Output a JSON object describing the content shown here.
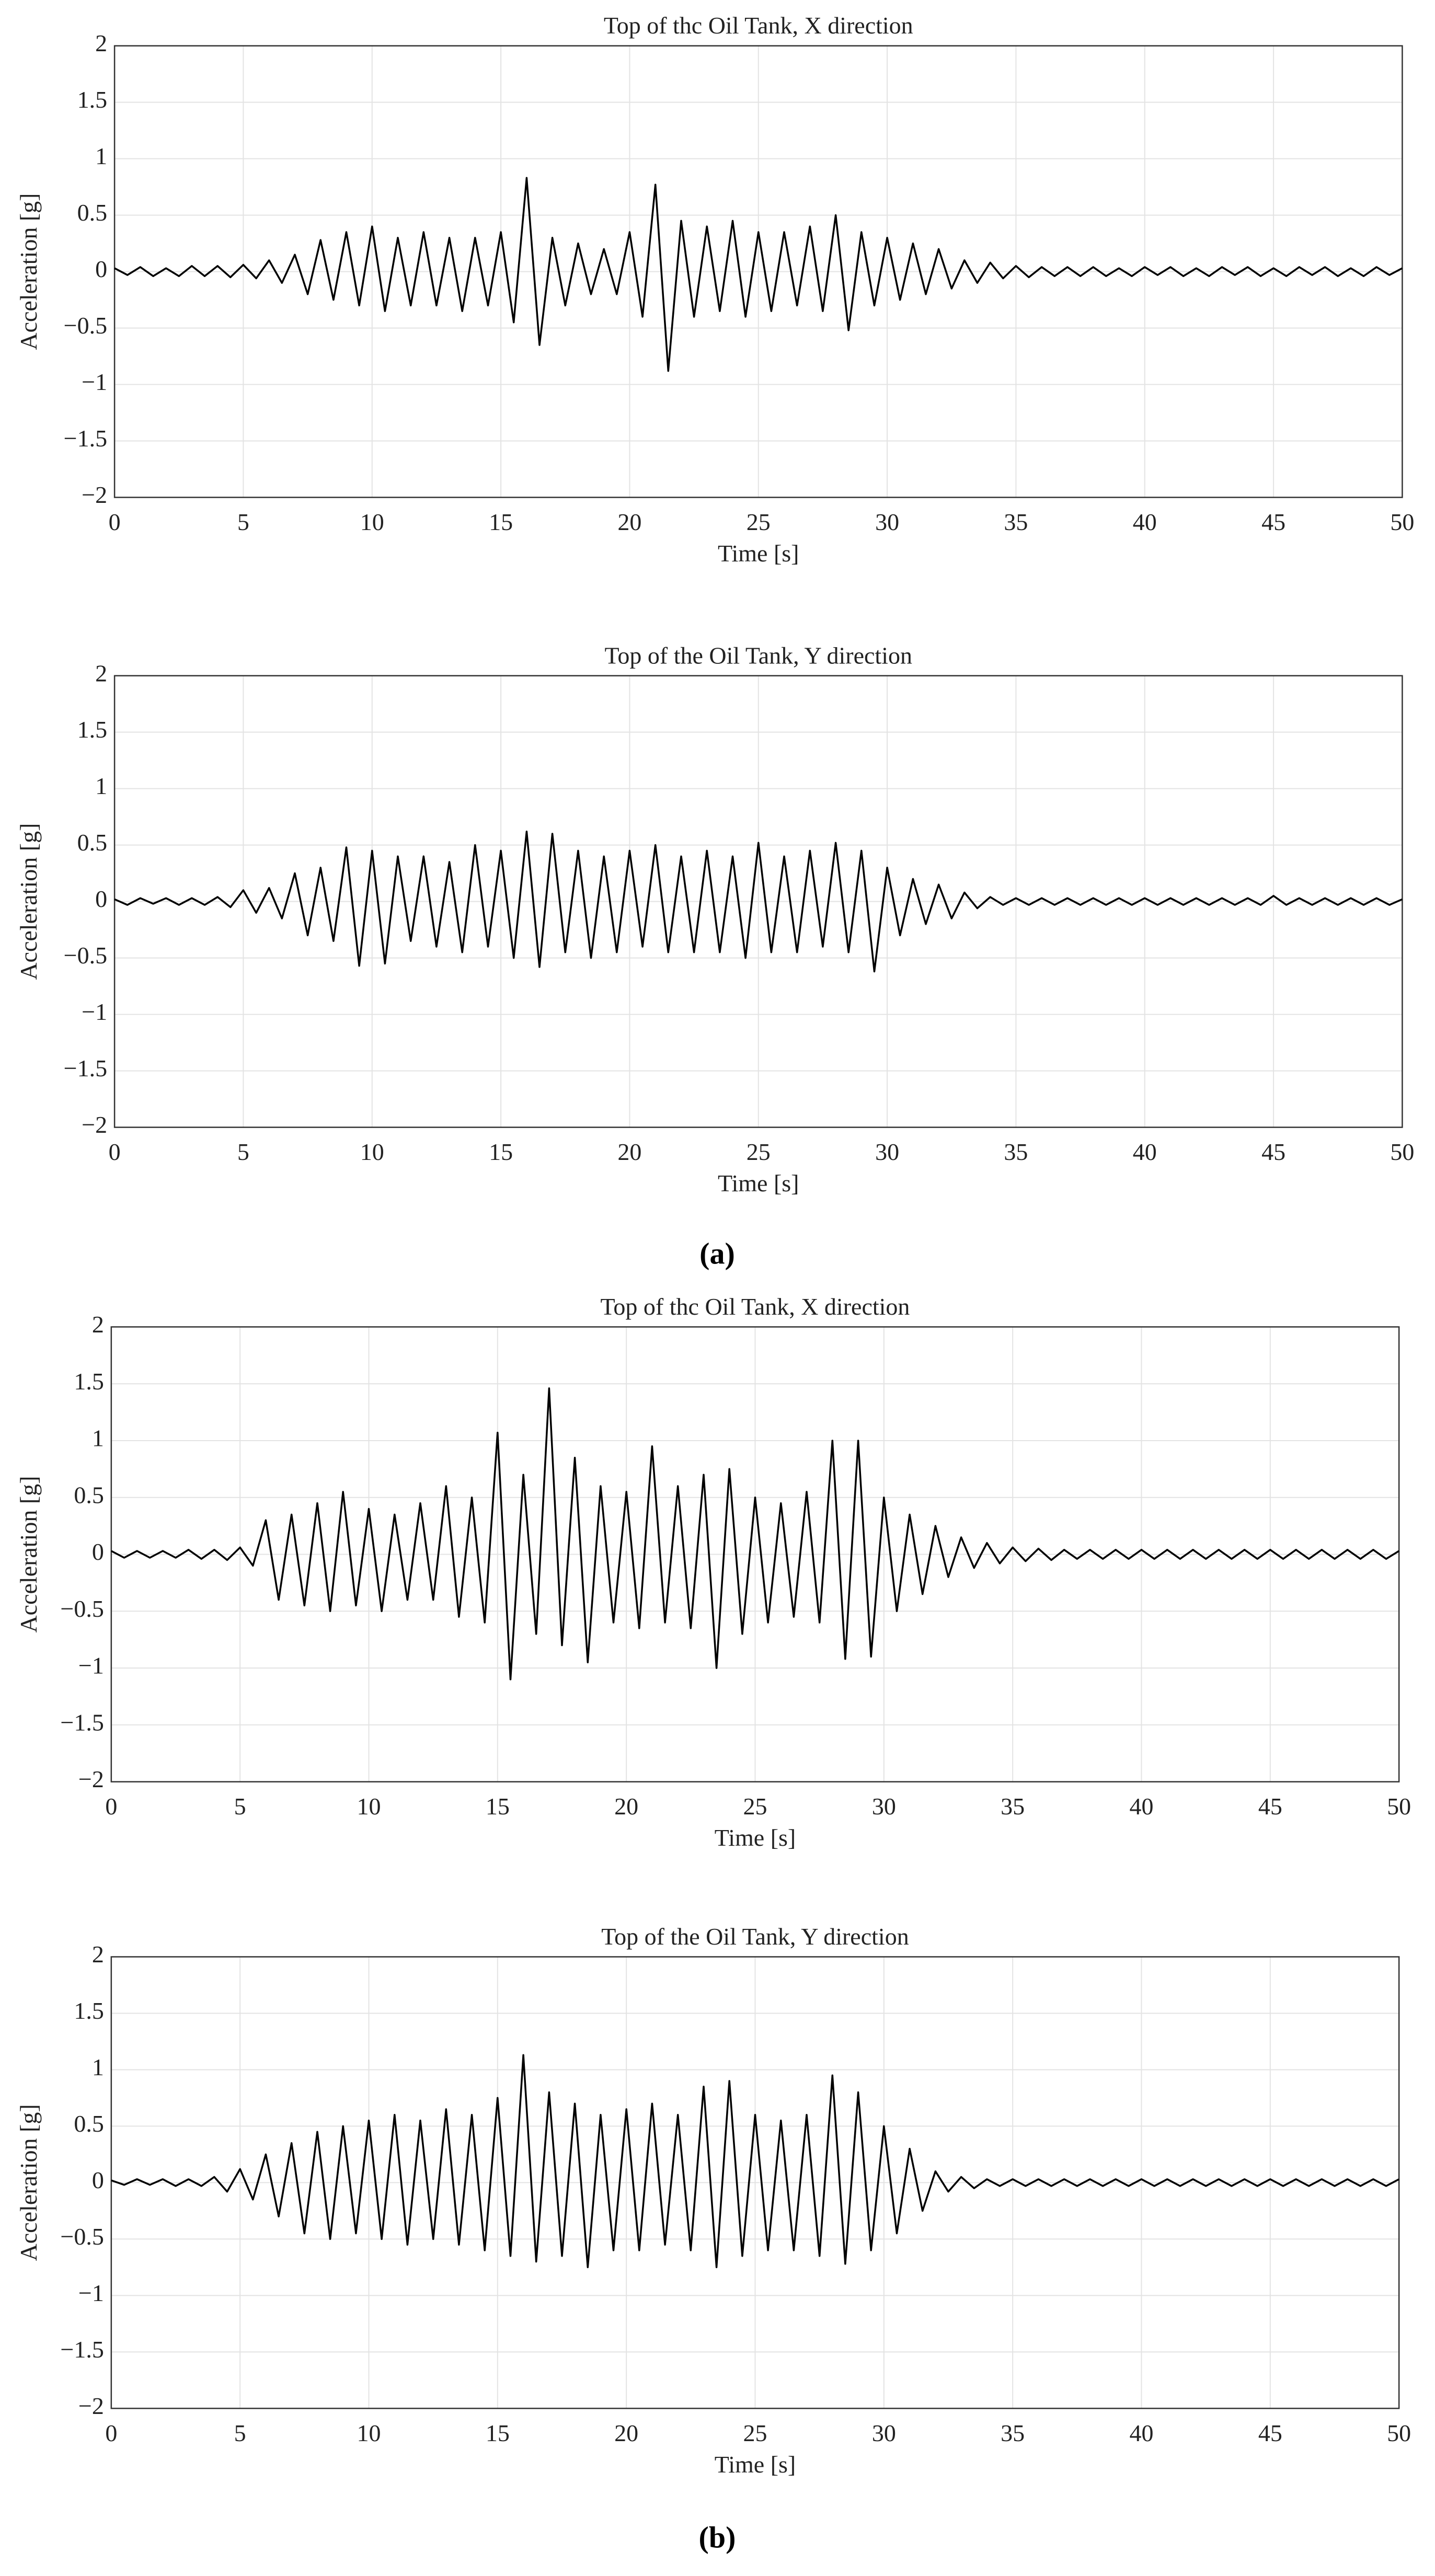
{
  "chart_data": [
    {
      "type": "line",
      "title": "Top of thc Oil Tank, X direction",
      "xlabel": "Time [s]",
      "ylabel": "Acceleration [g]",
      "color": "#000000",
      "grid": true,
      "xlim": [
        0,
        50
      ],
      "xticks": [
        0,
        5,
        10,
        15,
        20,
        25,
        30,
        35,
        40,
        45,
        50
      ],
      "ylim": [
        -2,
        2
      ],
      "yticks": [
        {
          "value": -2,
          "label": "−2"
        },
        {
          "value": -1.5,
          "label": "−1.5"
        },
        {
          "value": -1,
          "label": "−1"
        },
        {
          "value": -0.5,
          "label": "−0.5"
        },
        0,
        0.5,
        1,
        1.5,
        2
      ],
      "x": [
        0,
        0.5,
        1,
        1.5,
        2,
        2.5,
        3,
        3.5,
        4,
        4.5,
        5,
        5.5,
        6,
        6.5,
        7,
        7.5,
        8,
        8.5,
        9,
        9.5,
        10,
        10.5,
        11,
        11.5,
        12,
        12.5,
        13,
        13.5,
        14,
        14.5,
        15,
        15.5,
        16,
        16.5,
        17,
        17.5,
        18,
        18.5,
        19,
        19.5,
        20,
        20.5,
        21,
        21.5,
        22,
        22.5,
        23,
        23.5,
        24,
        24.5,
        25,
        25.5,
        26,
        26.5,
        27,
        27.5,
        28,
        28.5,
        29,
        29.5,
        30,
        30.5,
        31,
        31.5,
        32,
        32.5,
        33,
        33.5,
        34,
        34.5,
        35,
        35.5,
        36,
        36.5,
        37,
        37.5,
        38,
        38.5,
        39,
        39.5,
        40,
        40.5,
        41,
        41.5,
        42,
        42.5,
        43,
        43.5,
        44,
        44.5,
        45,
        45.5,
        46,
        46.5,
        47,
        47.5,
        48,
        48.5,
        49,
        49.5,
        50
      ],
      "values": [
        0.03,
        -0.03,
        0.04,
        -0.04,
        0.03,
        -0.04,
        0.05,
        -0.04,
        0.05,
        -0.05,
        0.06,
        -0.06,
        0.1,
        -0.1,
        0.15,
        -0.2,
        0.28,
        -0.25,
        0.35,
        -0.3,
        0.4,
        -0.35,
        0.3,
        -0.3,
        0.35,
        -0.3,
        0.3,
        -0.35,
        0.3,
        -0.3,
        0.35,
        -0.45,
        0.83,
        -0.65,
        0.3,
        -0.3,
        0.25,
        -0.2,
        0.2,
        -0.2,
        0.35,
        -0.4,
        0.77,
        -0.88,
        0.45,
        -0.4,
        0.4,
        -0.35,
        0.45,
        -0.4,
        0.35,
        -0.35,
        0.35,
        -0.3,
        0.4,
        -0.35,
        0.5,
        -0.52,
        0.35,
        -0.3,
        0.3,
        -0.25,
        0.25,
        -0.2,
        0.2,
        -0.15,
        0.1,
        -0.1,
        0.08,
        -0.06,
        0.05,
        -0.05,
        0.04,
        -0.04,
        0.04,
        -0.04,
        0.04,
        -0.04,
        0.03,
        -0.04,
        0.04,
        -0.03,
        0.04,
        -0.04,
        0.03,
        -0.04,
        0.04,
        -0.03,
        0.04,
        -0.04,
        0.03,
        -0.04,
        0.04,
        -0.03,
        0.04,
        -0.04,
        0.03,
        -0.04,
        0.04,
        -0.03,
        0.03
      ]
    },
    {
      "type": "line",
      "title": "Top of the Oil Tank, Y direction",
      "xlabel": "Time [s]",
      "ylabel": "Acceleration [g]",
      "color": "#000000",
      "grid": true,
      "xlim": [
        0,
        50
      ],
      "xticks": [
        0,
        5,
        10,
        15,
        20,
        25,
        30,
        35,
        40,
        45,
        50
      ],
      "ylim": [
        -2,
        2
      ],
      "yticks": [
        {
          "value": -2,
          "label": "−2"
        },
        {
          "value": -1.5,
          "label": "−1.5"
        },
        {
          "value": -1,
          "label": "−1"
        },
        {
          "value": -0.5,
          "label": "−0.5"
        },
        0,
        0.5,
        1,
        1.5,
        2
      ],
      "x": [
        0,
        0.5,
        1,
        1.5,
        2,
        2.5,
        3,
        3.5,
        4,
        4.5,
        5,
        5.5,
        6,
        6.5,
        7,
        7.5,
        8,
        8.5,
        9,
        9.5,
        10,
        10.5,
        11,
        11.5,
        12,
        12.5,
        13,
        13.5,
        14,
        14.5,
        15,
        15.5,
        16,
        16.5,
        17,
        17.5,
        18,
        18.5,
        19,
        19.5,
        20,
        20.5,
        21,
        21.5,
        22,
        22.5,
        23,
        23.5,
        24,
        24.5,
        25,
        25.5,
        26,
        26.5,
        27,
        27.5,
        28,
        28.5,
        29,
        29.5,
        30,
        30.5,
        31,
        31.5,
        32,
        32.5,
        33,
        33.5,
        34,
        34.5,
        35,
        35.5,
        36,
        36.5,
        37,
        37.5,
        38,
        38.5,
        39,
        39.5,
        40,
        40.5,
        41,
        41.5,
        42,
        42.5,
        43,
        43.5,
        44,
        44.5,
        45,
        45.5,
        46,
        46.5,
        47,
        47.5,
        48,
        48.5,
        49,
        49.5,
        50
      ],
      "values": [
        0.02,
        -0.03,
        0.03,
        -0.02,
        0.03,
        -0.03,
        0.03,
        -0.03,
        0.04,
        -0.05,
        0.1,
        -0.1,
        0.12,
        -0.15,
        0.25,
        -0.3,
        0.3,
        -0.35,
        0.48,
        -0.57,
        0.45,
        -0.55,
        0.4,
        -0.35,
        0.4,
        -0.4,
        0.35,
        -0.45,
        0.5,
        -0.4,
        0.45,
        -0.5,
        0.62,
        -0.58,
        0.6,
        -0.45,
        0.45,
        -0.5,
        0.4,
        -0.45,
        0.45,
        -0.4,
        0.5,
        -0.45,
        0.4,
        -0.45,
        0.45,
        -0.45,
        0.4,
        -0.5,
        0.52,
        -0.45,
        0.4,
        -0.45,
        0.45,
        -0.4,
        0.52,
        -0.45,
        0.45,
        -0.62,
        0.3,
        -0.3,
        0.2,
        -0.2,
        0.15,
        -0.15,
        0.08,
        -0.06,
        0.04,
        -0.03,
        0.03,
        -0.03,
        0.03,
        -0.03,
        0.03,
        -0.03,
        0.03,
        -0.03,
        0.03,
        -0.03,
        0.03,
        -0.03,
        0.03,
        -0.03,
        0.03,
        -0.03,
        0.03,
        -0.03,
        0.03,
        -0.03,
        0.05,
        -0.03,
        0.03,
        -0.03,
        0.03,
        -0.03,
        0.03,
        -0.03,
        0.03,
        -0.03,
        0.02
      ]
    },
    {
      "type": "line",
      "title": "Top of thc Oil Tank, X direction",
      "xlabel": "Time [s]",
      "ylabel": "Acceleration [g]",
      "color": "#000000",
      "grid": true,
      "xlim": [
        0,
        50
      ],
      "xticks": [
        0,
        5,
        10,
        15,
        20,
        25,
        30,
        35,
        40,
        45,
        50
      ],
      "ylim": [
        -2,
        2
      ],
      "yticks": [
        {
          "value": -2,
          "label": "−2"
        },
        {
          "value": -1.5,
          "label": "−1.5"
        },
        {
          "value": -1,
          "label": "−1"
        },
        {
          "value": -0.5,
          "label": "−0.5"
        },
        0,
        0.5,
        1,
        1.5,
        2
      ],
      "x": [
        0,
        0.5,
        1,
        1.5,
        2,
        2.5,
        3,
        3.5,
        4,
        4.5,
        5,
        5.5,
        6,
        6.5,
        7,
        7.5,
        8,
        8.5,
        9,
        9.5,
        10,
        10.5,
        11,
        11.5,
        12,
        12.5,
        13,
        13.5,
        14,
        14.5,
        15,
        15.5,
        16,
        16.5,
        17,
        17.5,
        18,
        18.5,
        19,
        19.5,
        20,
        20.5,
        21,
        21.5,
        22,
        22.5,
        23,
        23.5,
        24,
        24.5,
        25,
        25.5,
        26,
        26.5,
        27,
        27.5,
        28,
        28.5,
        29,
        29.5,
        30,
        30.5,
        31,
        31.5,
        32,
        32.5,
        33,
        33.5,
        34,
        34.5,
        35,
        35.5,
        36,
        36.5,
        37,
        37.5,
        38,
        38.5,
        39,
        39.5,
        40,
        40.5,
        41,
        41.5,
        42,
        42.5,
        43,
        43.5,
        44,
        44.5,
        45,
        45.5,
        46,
        46.5,
        47,
        47.5,
        48,
        48.5,
        49,
        49.5,
        50
      ],
      "values": [
        0.03,
        -0.03,
        0.03,
        -0.03,
        0.03,
        -0.03,
        0.04,
        -0.04,
        0.04,
        -0.05,
        0.06,
        -0.1,
        0.3,
        -0.4,
        0.35,
        -0.45,
        0.45,
        -0.5,
        0.55,
        -0.45,
        0.4,
        -0.5,
        0.35,
        -0.4,
        0.45,
        -0.4,
        0.6,
        -0.55,
        0.5,
        -0.6,
        1.07,
        -1.1,
        0.7,
        -0.7,
        1.46,
        -0.8,
        0.85,
        -0.95,
        0.6,
        -0.6,
        0.55,
        -0.65,
        0.95,
        -0.6,
        0.6,
        -0.65,
        0.7,
        -1.0,
        0.75,
        -0.7,
        0.5,
        -0.6,
        0.45,
        -0.55,
        0.55,
        -0.6,
        1.0,
        -0.92,
        1.0,
        -0.9,
        0.5,
        -0.5,
        0.35,
        -0.35,
        0.25,
        -0.2,
        0.15,
        -0.12,
        0.1,
        -0.08,
        0.06,
        -0.06,
        0.05,
        -0.05,
        0.04,
        -0.04,
        0.04,
        -0.04,
        0.04,
        -0.04,
        0.04,
        -0.04,
        0.04,
        -0.04,
        0.04,
        -0.04,
        0.04,
        -0.04,
        0.04,
        -0.04,
        0.04,
        -0.04,
        0.04,
        -0.04,
        0.04,
        -0.04,
        0.04,
        -0.04,
        0.04,
        -0.04,
        0.03
      ]
    },
    {
      "type": "line",
      "title": "Top of the Oil Tank, Y direction",
      "xlabel": "Time [s]",
      "ylabel": "Acceleration [g]",
      "color": "#000000",
      "grid": true,
      "xlim": [
        0,
        50
      ],
      "xticks": [
        0,
        5,
        10,
        15,
        20,
        25,
        30,
        35,
        40,
        45,
        50
      ],
      "ylim": [
        -2,
        2
      ],
      "yticks": [
        {
          "value": -2,
          "label": "−2"
        },
        {
          "value": -1.5,
          "label": "−1.5"
        },
        {
          "value": -1,
          "label": "−1"
        },
        {
          "value": -0.5,
          "label": "−0.5"
        },
        0,
        0.5,
        1,
        1.5,
        2
      ],
      "x": [
        0,
        0.5,
        1,
        1.5,
        2,
        2.5,
        3,
        3.5,
        4,
        4.5,
        5,
        5.5,
        6,
        6.5,
        7,
        7.5,
        8,
        8.5,
        9,
        9.5,
        10,
        10.5,
        11,
        11.5,
        12,
        12.5,
        13,
        13.5,
        14,
        14.5,
        15,
        15.5,
        16,
        16.5,
        17,
        17.5,
        18,
        18.5,
        19,
        19.5,
        20,
        20.5,
        21,
        21.5,
        22,
        22.5,
        23,
        23.5,
        24,
        24.5,
        25,
        25.5,
        26,
        26.5,
        27,
        27.5,
        28,
        28.5,
        29,
        29.5,
        30,
        30.5,
        31,
        31.5,
        32,
        32.5,
        33,
        33.5,
        34,
        34.5,
        35,
        35.5,
        36,
        36.5,
        37,
        37.5,
        38,
        38.5,
        39,
        39.5,
        40,
        40.5,
        41,
        41.5,
        42,
        42.5,
        43,
        43.5,
        44,
        44.5,
        45,
        45.5,
        46,
        46.5,
        47,
        47.5,
        48,
        48.5,
        49,
        49.5,
        50
      ],
      "values": [
        0.02,
        -0.02,
        0.03,
        -0.02,
        0.03,
        -0.03,
        0.03,
        -0.03,
        0.05,
        -0.08,
        0.12,
        -0.15,
        0.25,
        -0.3,
        0.35,
        -0.45,
        0.45,
        -0.5,
        0.5,
        -0.45,
        0.55,
        -0.5,
        0.6,
        -0.55,
        0.55,
        -0.5,
        0.65,
        -0.55,
        0.6,
        -0.6,
        0.75,
        -0.65,
        1.13,
        -0.7,
        0.8,
        -0.65,
        0.7,
        -0.75,
        0.6,
        -0.6,
        0.65,
        -0.6,
        0.7,
        -0.55,
        0.6,
        -0.6,
        0.85,
        -0.75,
        0.9,
        -0.65,
        0.6,
        -0.6,
        0.55,
        -0.6,
        0.6,
        -0.65,
        0.95,
        -0.72,
        0.8,
        -0.6,
        0.5,
        -0.45,
        0.3,
        -0.25,
        0.1,
        -0.08,
        0.05,
        -0.05,
        0.03,
        -0.03,
        0.03,
        -0.03,
        0.03,
        -0.03,
        0.03,
        -0.03,
        0.03,
        -0.03,
        0.03,
        -0.03,
        0.03,
        -0.03,
        0.03,
        -0.03,
        0.03,
        -0.03,
        0.03,
        -0.03,
        0.03,
        -0.03,
        0.03,
        -0.03,
        0.03,
        -0.03,
        0.03,
        -0.03,
        0.03,
        -0.03,
        0.03,
        -0.03,
        0.03
      ]
    }
  ],
  "captions": [
    "(a)",
    "(b)"
  ]
}
